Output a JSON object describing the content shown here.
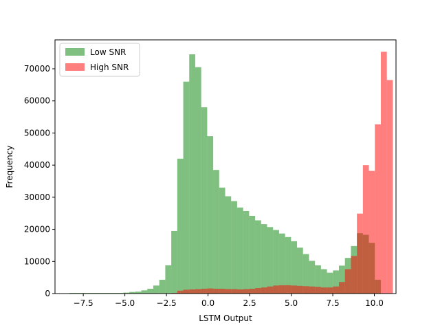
{
  "chart_data": {
    "type": "bar",
    "subtype": "histogram",
    "xlabel": "LSTM Output",
    "ylabel": "Frequency",
    "xlim": [
      -9.2,
      11.3
    ],
    "ylim": [
      0,
      79000
    ],
    "xticks": [
      -7.5,
      -5.0,
      -2.5,
      0.0,
      2.5,
      5.0,
      7.5,
      10.0
    ],
    "xtick_labels": [
      "−7.5",
      "−5.0",
      "−2.5",
      "0.0",
      "2.5",
      "5.0",
      "7.5",
      "10.0"
    ],
    "yticks": [
      0,
      10000,
      20000,
      30000,
      40000,
      50000,
      60000,
      70000
    ],
    "ytick_labels": [
      "0",
      "10000",
      "20000",
      "30000",
      "40000",
      "50000",
      "60000",
      "70000"
    ],
    "legend": {
      "placement": "upper-left"
    },
    "series": [
      {
        "name": "Low SNR",
        "color": "#008000",
        "opacity": 0.5,
        "bins": [
          [
            -8.33,
            200
          ],
          [
            -7.97,
            200
          ],
          [
            -7.61,
            200
          ],
          [
            -7.25,
            200
          ],
          [
            -6.89,
            200
          ],
          [
            -6.53,
            200
          ],
          [
            -6.17,
            200
          ],
          [
            -5.81,
            200
          ],
          [
            -5.45,
            200
          ],
          [
            -5.09,
            300
          ],
          [
            -4.73,
            500
          ],
          [
            -4.37,
            600
          ],
          [
            -4.01,
            1000
          ],
          [
            -3.65,
            1500
          ],
          [
            -3.29,
            2500
          ],
          [
            -2.93,
            4300
          ],
          [
            -2.57,
            8800
          ],
          [
            -2.21,
            19500
          ],
          [
            -1.85,
            42000
          ],
          [
            -1.49,
            66000
          ],
          [
            -1.13,
            74500
          ],
          [
            -0.77,
            70500
          ],
          [
            -0.41,
            58000
          ],
          [
            -0.05,
            49000
          ],
          [
            0.31,
            38500
          ],
          [
            0.67,
            33000
          ],
          [
            1.03,
            30300
          ],
          [
            1.39,
            28800
          ],
          [
            1.75,
            26800
          ],
          [
            2.11,
            25700
          ],
          [
            2.47,
            24200
          ],
          [
            2.83,
            22800
          ],
          [
            3.19,
            21600
          ],
          [
            3.55,
            20700
          ],
          [
            3.91,
            19800
          ],
          [
            4.27,
            18700
          ],
          [
            4.63,
            17600
          ],
          [
            4.99,
            16300
          ],
          [
            5.35,
            14300
          ],
          [
            5.71,
            12300
          ],
          [
            6.07,
            10200
          ],
          [
            6.43,
            8800
          ],
          [
            6.79,
            7600
          ],
          [
            7.15,
            6500
          ],
          [
            7.51,
            7200
          ],
          [
            7.87,
            8700
          ],
          [
            8.23,
            11100
          ],
          [
            8.59,
            14800
          ],
          [
            8.95,
            18800
          ],
          [
            9.31,
            18300
          ],
          [
            9.67,
            15800
          ],
          [
            10.03,
            4300
          ]
        ]
      },
      {
        "name": "High SNR",
        "color": "#ff0000",
        "opacity": 0.5,
        "bins": [
          [
            -2.21,
            200
          ],
          [
            -1.85,
            900
          ],
          [
            -1.49,
            1200
          ],
          [
            -1.13,
            1300
          ],
          [
            -0.77,
            1400
          ],
          [
            -0.41,
            1500
          ],
          [
            -0.05,
            1600
          ],
          [
            0.31,
            1500
          ],
          [
            0.67,
            1500
          ],
          [
            1.03,
            1400
          ],
          [
            1.39,
            1400
          ],
          [
            1.75,
            1300
          ],
          [
            2.11,
            1400
          ],
          [
            2.47,
            1500
          ],
          [
            2.83,
            1700
          ],
          [
            3.19,
            1900
          ],
          [
            3.55,
            2200
          ],
          [
            3.91,
            2500
          ],
          [
            4.27,
            2600
          ],
          [
            4.63,
            2600
          ],
          [
            4.99,
            2500
          ],
          [
            5.35,
            2400
          ],
          [
            5.71,
            2300
          ],
          [
            6.07,
            2200
          ],
          [
            6.43,
            2100
          ],
          [
            6.79,
            1900
          ],
          [
            7.15,
            1900
          ],
          [
            7.51,
            2200
          ],
          [
            7.87,
            3600
          ],
          [
            8.23,
            7600
          ],
          [
            8.59,
            11700
          ],
          [
            8.95,
            24900
          ],
          [
            9.31,
            40000
          ],
          [
            9.67,
            38200
          ],
          [
            10.03,
            52700
          ],
          [
            10.39,
            75300
          ],
          [
            10.75,
            66500
          ]
        ]
      }
    ]
  }
}
